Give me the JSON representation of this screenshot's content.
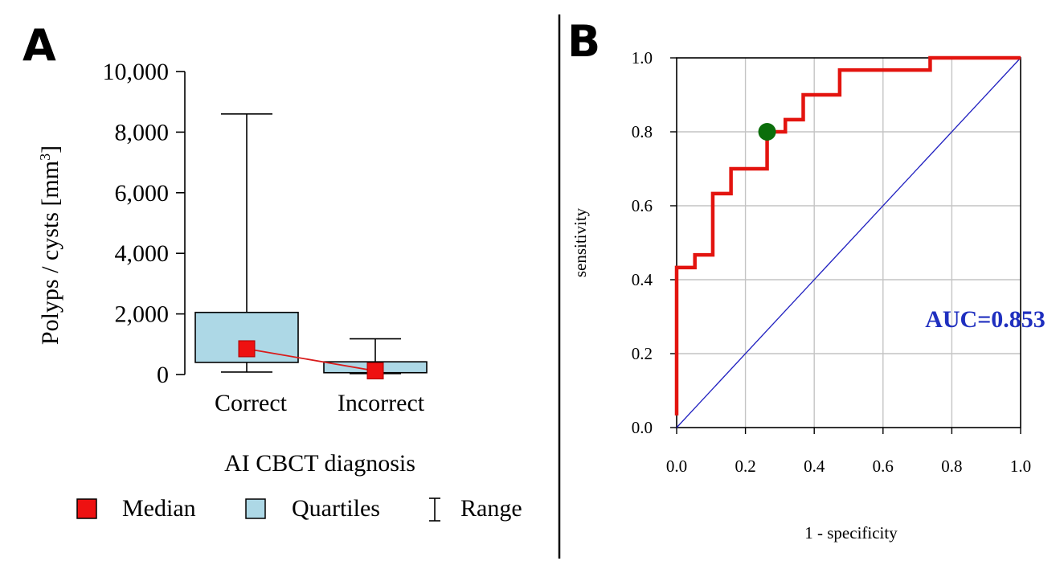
{
  "chart_data": [
    {
      "panel_label": "A",
      "type": "box",
      "categories": [
        "Correct",
        "Incorrect"
      ],
      "xlabel": "AI CBCT diagnosis",
      "ylabel_main": "Polyps / cysts [mm",
      "ylabel_sup": "3",
      "ylabel_end": "]",
      "ylim": [
        0,
        10000
      ],
      "yticks": [
        0,
        2000,
        4000,
        6000,
        8000,
        10000
      ],
      "ytick_labels": [
        "0",
        "2,000",
        "4,000",
        "6,000",
        "8,000",
        "10,000"
      ],
      "boxes": [
        {
          "category": "Correct",
          "min": 80,
          "q1": 400,
          "median": 850,
          "q3": 2050,
          "max": 8600
        },
        {
          "category": "Incorrect",
          "min": 30,
          "q1": 60,
          "median": 120,
          "q3": 420,
          "max": 1180
        }
      ],
      "legend": [
        {
          "label": "Median",
          "symbol": "median",
          "color": "#ee1111"
        },
        {
          "label": "Quartiles",
          "symbol": "quartiles",
          "color": "#add8e6"
        },
        {
          "label": "Range",
          "symbol": "range",
          "color": "#000000"
        }
      ]
    },
    {
      "panel_label": "B",
      "type": "line",
      "xlabel": "1 - specificity",
      "ylabel": "sensitivity",
      "xlim": [
        0,
        1
      ],
      "ylim": [
        0,
        1
      ],
      "xticks": [
        "0.0",
        "0.2",
        "0.4",
        "0.6",
        "0.8",
        "1.0"
      ],
      "yticks": [
        "0.0",
        "0.2",
        "0.4",
        "0.6",
        "0.8",
        "1.0"
      ],
      "grid": true,
      "annotation": "AUC=0.853",
      "series": [
        {
          "color": "#e3140f",
          "x": [
            0,
            0,
            0.053,
            0.053,
            0.105,
            0.105,
            0.158,
            0.158,
            0.263,
            0.263,
            0.316,
            0.316,
            0.368,
            0.368,
            0.474,
            0.474,
            0.737,
            0.737,
            1.0
          ],
          "y": [
            0.033,
            0.433,
            0.433,
            0.467,
            0.467,
            0.633,
            0.633,
            0.7,
            0.7,
            0.8,
            0.8,
            0.833,
            0.833,
            0.9,
            0.9,
            0.967,
            0.967,
            1.0,
            1.0
          ]
        },
        {
          "color": "#2020c0",
          "x": [
            0,
            1
          ],
          "y": [
            0,
            1
          ]
        }
      ],
      "cutoff_point": {
        "x": 0.263,
        "y": 0.8,
        "color": "#0b6e0b"
      }
    }
  ]
}
